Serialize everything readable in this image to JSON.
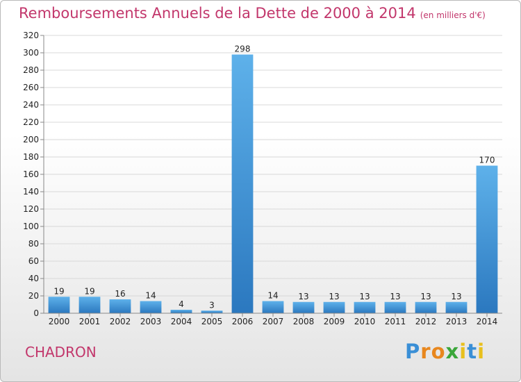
{
  "chart_data": {
    "type": "bar",
    "title": "Remboursements Annuels de la Dette de 2000 à 2014",
    "unit": "(en milliers d'€)",
    "categories": [
      "2000",
      "2001",
      "2002",
      "2003",
      "2004",
      "2005",
      "2006",
      "2007",
      "2008",
      "2009",
      "2010",
      "2011",
      "2012",
      "2013",
      "2014"
    ],
    "values": [
      19,
      19,
      16,
      14,
      4,
      3,
      298,
      14,
      13,
      13,
      13,
      13,
      13,
      13,
      170
    ],
    "data_labels": [
      "19",
      "19",
      "16",
      "14",
      "4",
      "3",
      "298",
      "14",
      "13",
      "13",
      "13",
      "13",
      "13",
      "13",
      "170"
    ],
    "ylim": [
      0,
      320
    ],
    "yticks": [
      0,
      20,
      40,
      60,
      80,
      100,
      120,
      140,
      160,
      180,
      200,
      220,
      240,
      260,
      280,
      300,
      320
    ],
    "ytick_labels": [
      "0",
      "20",
      "40",
      "60",
      "80",
      "100",
      "120",
      "140",
      "160",
      "180",
      "200",
      "220",
      "240",
      "260",
      "280",
      "300",
      "320"
    ],
    "grid": "horizontal",
    "bar_color": "#3d8fd4",
    "legend": "none"
  },
  "commune": "CHADRON",
  "logo": {
    "letters": [
      "P",
      "r",
      "o",
      "x",
      "i",
      "t",
      "i"
    ],
    "colors": [
      "#3a8fd6",
      "#e8871e",
      "#e8871e",
      "#3aa63a",
      "#e8c01e",
      "#3a8fd6",
      "#e8c01e"
    ]
  }
}
